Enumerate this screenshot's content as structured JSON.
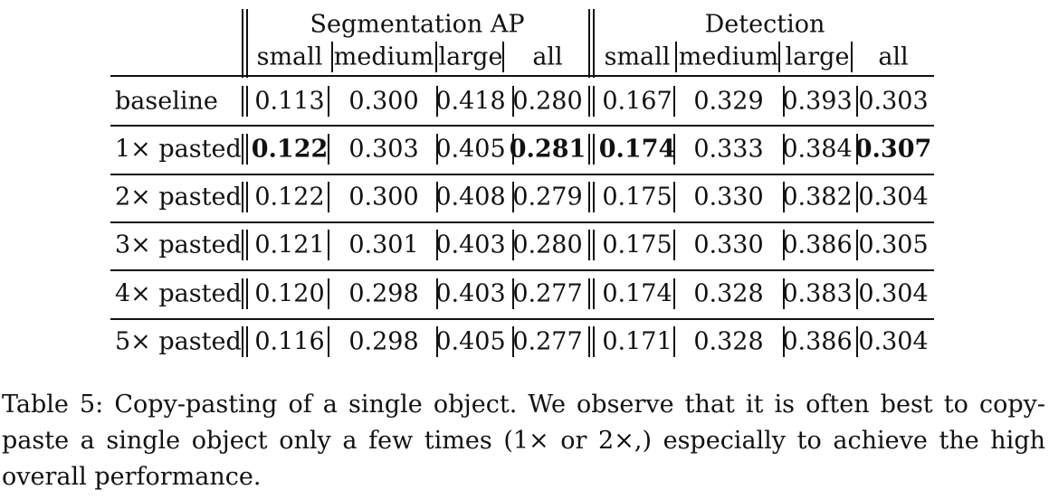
{
  "table": {
    "groups": [
      "Segmentation AP",
      "Detection"
    ],
    "subcolumns": [
      "small",
      "medium",
      "large",
      "all",
      "small",
      "medium",
      "large",
      "all"
    ],
    "rows": [
      {
        "label": "baseline",
        "values": [
          "0.113",
          "0.300",
          "0.418",
          "0.280",
          "0.167",
          "0.329",
          "0.393",
          "0.303"
        ],
        "bold": []
      },
      {
        "label": "1× pasted",
        "values": [
          "0.122",
          "0.303",
          "0.405",
          "0.281",
          "0.174",
          "0.333",
          "0.384",
          "0.307"
        ],
        "bold": [
          0,
          3,
          4,
          7
        ]
      },
      {
        "label": "2× pasted",
        "values": [
          "0.122",
          "0.300",
          "0.408",
          "0.279",
          "0.175",
          "0.330",
          "0.382",
          "0.304"
        ],
        "bold": []
      },
      {
        "label": "3× pasted",
        "values": [
          "0.121",
          "0.301",
          "0.403",
          "0.280",
          "0.175",
          "0.330",
          "0.386",
          "0.305"
        ],
        "bold": []
      },
      {
        "label": "4× pasted",
        "values": [
          "0.120",
          "0.298",
          "0.403",
          "0.277",
          "0.174",
          "0.328",
          "0.383",
          "0.304"
        ],
        "bold": []
      },
      {
        "label": "5× pasted",
        "values": [
          "0.116",
          "0.298",
          "0.405",
          "0.277",
          "0.171",
          "0.328",
          "0.386",
          "0.304"
        ],
        "bold": []
      }
    ]
  },
  "caption": "Table 5: Copy-pasting of a single object. We observe that it is often best to copy-paste a single object only a few times (1× or 2×,) especially to achieve the high overall performance."
}
